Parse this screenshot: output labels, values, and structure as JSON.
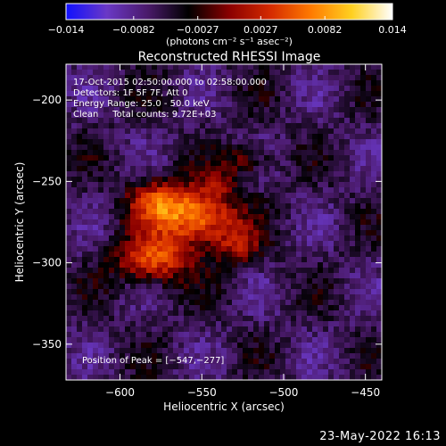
{
  "chart_data": {
    "type": "heatmap",
    "title": "Reconstructed RHESSI Image",
    "xlabel": "Heliocentric X (arcsec)",
    "ylabel": "Heliocentric Y (arcsec)",
    "xlim": [
      -633,
      -440
    ],
    "ylim": [
      -372,
      -178
    ],
    "xticks": [
      -600,
      -550,
      -500,
      -450
    ],
    "yticks": [
      -350,
      -300,
      -250,
      -200
    ],
    "xtick_labels": [
      "−600",
      "−550",
      "−500",
      "−450"
    ],
    "ytick_labels": [
      "−350",
      "−300",
      "−250",
      "−200"
    ],
    "colorbar": {
      "min": -0.014,
      "max": 0.014,
      "ticks": [
        -0.014,
        -0.0082,
        -0.0027,
        0.0027,
        0.0082,
        0.014
      ],
      "tick_labels": [
        "−0.014",
        "−0.0082",
        "−0.0027",
        "0.0027",
        "0.0082",
        "0.014"
      ],
      "units": "(photons cm⁻² s⁻¹ asec⁻²)"
    },
    "annotations": [
      "17-Oct-2015 02:50:00.000 to 02:58:00.000",
      "Detectors: 1F 5F 7F, Att 0",
      "Energy Range: 25.0 - 50.0 keV",
      "Clean     Total counts: 9.72E+03"
    ],
    "peak_label": "Position of Peak = [−547,−277]",
    "peak": [
      -547,
      -277
    ],
    "sources": [
      {
        "x": -553,
        "y": -272,
        "sx": 17,
        "sy": 12,
        "amp": 0.0135
      },
      {
        "x": -580,
        "y": -298,
        "sx": 16,
        "sy": 10,
        "amp": 0.011
      },
      {
        "x": -578,
        "y": -262,
        "sx": 13,
        "sy": 10,
        "amp": 0.0085
      },
      {
        "x": -528,
        "y": -290,
        "sx": 10,
        "sy": 9,
        "amp": 0.006
      },
      {
        "x": -523,
        "y": -237,
        "sx": 11,
        "sy": 7,
        "amp": 0.0055
      },
      {
        "x": -540,
        "y": -252,
        "sx": 8,
        "sy": 6,
        "amp": 0.004
      }
    ],
    "colormap": [
      "#1010ff",
      "#6a38c6",
      "#4a1a6a",
      "#000000",
      "#8a0000",
      "#d42a00",
      "#ff7a00",
      "#ffd020",
      "#ffffff"
    ]
  },
  "footer": {
    "date_stamp": "23-May-2022 16:13"
  }
}
